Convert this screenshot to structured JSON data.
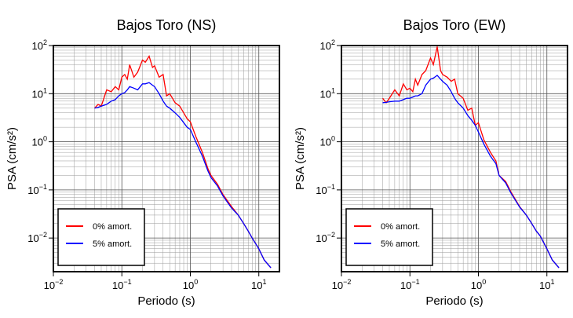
{
  "chart_data": [
    {
      "type": "line",
      "title": "Bajos Toro (NS)",
      "xlabel": "Periodo (s)",
      "ylabel": "PSA (cm/s²)",
      "log_x": true,
      "log_y": true,
      "grid": true,
      "legend": "lower left",
      "xlim": [
        0.01,
        20
      ],
      "ylim": [
        0.002,
        100
      ],
      "xticks": [
        {
          "value": 0.01,
          "label": "10",
          "exponent": "−2"
        },
        {
          "value": 0.1,
          "label": "10",
          "exponent": "−1"
        },
        {
          "value": 1,
          "label": "10",
          "exponent": "0"
        },
        {
          "value": 10,
          "label": "10",
          "exponent": "1"
        }
      ],
      "yticks": [
        {
          "value": 0.01,
          "label": "10",
          "exponent": "−2"
        },
        {
          "value": 0.1,
          "label": "10",
          "exponent": "−1"
        },
        {
          "value": 1,
          "label": "10",
          "exponent": "0"
        },
        {
          "value": 10,
          "label": "10",
          "exponent": "1"
        },
        {
          "value": 100,
          "label": "10",
          "exponent": "2"
        }
      ],
      "minor_xticks": [
        0.02,
        0.03,
        0.04,
        0.05,
        0.06,
        0.07,
        0.08,
        0.09,
        0.2,
        0.3,
        0.4,
        0.5,
        0.6,
        0.7,
        0.8,
        0.9,
        2,
        3,
        4,
        5,
        6,
        7,
        8,
        9,
        20
      ],
      "minor_yticks": [
        0.003,
        0.004,
        0.005,
        0.006,
        0.007,
        0.008,
        0.009,
        0.02,
        0.03,
        0.04,
        0.05,
        0.06,
        0.07,
        0.08,
        0.09,
        0.2,
        0.3,
        0.4,
        0.5,
        0.6,
        0.7,
        0.8,
        0.9,
        2,
        3,
        4,
        5,
        6,
        7,
        8,
        9,
        20,
        30,
        40,
        50,
        60,
        70,
        80,
        90
      ],
      "x": [
        0.04,
        0.045,
        0.05,
        0.06,
        0.07,
        0.08,
        0.09,
        0.1,
        0.11,
        0.12,
        0.13,
        0.15,
        0.17,
        0.2,
        0.22,
        0.25,
        0.28,
        0.3,
        0.35,
        0.4,
        0.45,
        0.5,
        0.6,
        0.7,
        0.8,
        0.9,
        1.0,
        1.2,
        1.5,
        1.8,
        2,
        2.5,
        3,
        4,
        5,
        6,
        7,
        8,
        10,
        12,
        15
      ],
      "series": [
        {
          "name": "0% amort.",
          "color": "#ff0000",
          "values": [
            5,
            6,
            5.5,
            12,
            11,
            14,
            12,
            22,
            25,
            20,
            40,
            22,
            28,
            50,
            45,
            60,
            35,
            38,
            22,
            25,
            9,
            10,
            6.5,
            5.5,
            4,
            3,
            2.6,
            1.3,
            0.6,
            0.28,
            0.2,
            0.13,
            0.08,
            0.045,
            0.03,
            0.02,
            0.014,
            0.01,
            0.006,
            0.0035,
            0.0024
          ]
        },
        {
          "name": "5% amort.",
          "color": "#0000ff",
          "values": [
            5,
            5.2,
            5.5,
            6,
            7,
            7.5,
            9,
            10,
            10.5,
            12,
            14,
            13,
            12,
            16,
            16,
            17,
            15,
            14,
            10,
            7,
            5.5,
            5,
            4,
            3.2,
            2.5,
            2,
            1.8,
            1,
            0.5,
            0.25,
            0.18,
            0.12,
            0.075,
            0.042,
            0.03,
            0.02,
            0.014,
            0.01,
            0.006,
            0.0035,
            0.0024
          ]
        }
      ]
    },
    {
      "type": "line",
      "title": "Bajos Toro (EW)",
      "xlabel": "Periodo (s)",
      "ylabel": "PSA (cm/s²)",
      "log_x": true,
      "log_y": true,
      "grid": true,
      "legend": "lower left",
      "xlim": [
        0.01,
        20
      ],
      "ylim": [
        0.002,
        100
      ],
      "xticks": [
        {
          "value": 0.01,
          "label": "10",
          "exponent": "−2"
        },
        {
          "value": 0.1,
          "label": "10",
          "exponent": "−1"
        },
        {
          "value": 1,
          "label": "10",
          "exponent": "0"
        },
        {
          "value": 10,
          "label": "10",
          "exponent": "1"
        }
      ],
      "yticks": [
        {
          "value": 0.01,
          "label": "10",
          "exponent": "−2"
        },
        {
          "value": 0.1,
          "label": "10",
          "exponent": "−1"
        },
        {
          "value": 1,
          "label": "10",
          "exponent": "0"
        },
        {
          "value": 10,
          "label": "10",
          "exponent": "1"
        },
        {
          "value": 100,
          "label": "10",
          "exponent": "2"
        }
      ],
      "minor_xticks": [
        0.02,
        0.03,
        0.04,
        0.05,
        0.06,
        0.07,
        0.08,
        0.09,
        0.2,
        0.3,
        0.4,
        0.5,
        0.6,
        0.7,
        0.8,
        0.9,
        2,
        3,
        4,
        5,
        6,
        7,
        8,
        9,
        20
      ],
      "minor_yticks": [
        0.003,
        0.004,
        0.005,
        0.006,
        0.007,
        0.008,
        0.009,
        0.02,
        0.03,
        0.04,
        0.05,
        0.06,
        0.07,
        0.08,
        0.09,
        0.2,
        0.3,
        0.4,
        0.5,
        0.6,
        0.7,
        0.8,
        0.9,
        2,
        3,
        4,
        5,
        6,
        7,
        8,
        9,
        20,
        30,
        40,
        50,
        60,
        70,
        80,
        90
      ],
      "x": [
        0.04,
        0.045,
        0.05,
        0.06,
        0.07,
        0.08,
        0.09,
        0.1,
        0.11,
        0.12,
        0.13,
        0.15,
        0.17,
        0.2,
        0.22,
        0.25,
        0.28,
        0.3,
        0.35,
        0.4,
        0.45,
        0.5,
        0.6,
        0.7,
        0.8,
        0.9,
        1.0,
        1.2,
        1.5,
        1.8,
        2,
        2.5,
        3,
        4,
        5,
        6,
        7,
        8,
        10,
        12,
        15
      ],
      "series": [
        {
          "name": "0% amort.",
          "color": "#ff0000",
          "values": [
            8,
            6.5,
            8,
            12,
            9,
            16,
            12,
            13,
            11,
            20,
            15,
            25,
            30,
            55,
            40,
            95,
            30,
            25,
            22,
            18,
            20,
            10,
            8,
            4.5,
            5,
            2.2,
            2.5,
            1.1,
            0.6,
            0.4,
            0.2,
            0.15,
            0.09,
            0.045,
            0.03,
            0.02,
            0.014,
            0.011,
            0.006,
            0.0035,
            0.0024
          ]
        },
        {
          "name": "5% amort.",
          "color": "#0000ff",
          "values": [
            6.5,
            6.6,
            6.8,
            7,
            7,
            7.5,
            8,
            8,
            8.5,
            9,
            9,
            10,
            15,
            20,
            21,
            24,
            20,
            18,
            15,
            11,
            8,
            6.5,
            5,
            3.5,
            2.8,
            2.2,
            1.6,
            0.9,
            0.5,
            0.35,
            0.2,
            0.14,
            0.085,
            0.044,
            0.03,
            0.02,
            0.014,
            0.011,
            0.006,
            0.0035,
            0.0024
          ]
        }
      ]
    }
  ]
}
